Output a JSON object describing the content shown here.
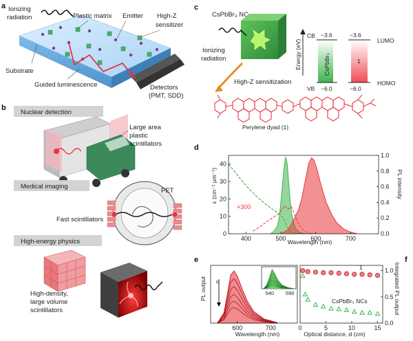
{
  "panel_a": {
    "letter": "a",
    "labels": {
      "ionizing": "Ionizing",
      "radiation": "radiation",
      "plastic_matrix": "Plastic matrix",
      "emitter": "Emitter",
      "high_z": "High-Z",
      "sensitizer": "sensitizer",
      "substrate": "Substrate",
      "guided": "Guided luminescence",
      "detectors": "Detectors",
      "detectors_sub": "(PMT, SDD)"
    }
  },
  "panel_b": {
    "letter": "b",
    "nuclear": "Nuclear detection",
    "large_area_1": "Large area",
    "large_area_2": "plastic",
    "large_area_3": "scintillators",
    "medical": "Medical imaging",
    "pet": "PET",
    "fast": "Fast scintillators",
    "hep": "High-energy physics",
    "hd1": "High-density,",
    "hd2": "large volume",
    "hd3": "scintillators"
  },
  "panel_c": {
    "letter": "c",
    "nc_title": "CsPbBr₃ NC",
    "ionizing": "Ionizing",
    "radiation": "radiation",
    "sensitization": "High-Z sensitization",
    "energy_axis": "Energy (eV)",
    "cb": "CB",
    "vb": "VB",
    "cb_val": "−3.6",
    "vb_val": "−6.0",
    "lumo_val": "−3.6",
    "homo_val": "−6.0",
    "lumo": "LUMO",
    "homo": "HOMO",
    "bar_label": "CsPbBr₃",
    "dyad_num": "1",
    "dyad_name": "Perylene dyad (1)",
    "colors": {
      "green": "#3cb54a",
      "red": "#e8363d",
      "molecule": "#e8363d"
    }
  },
  "panel_d": {
    "letter": "d",
    "xlabel": "Wavelength (nm)",
    "ylabel_left": "ε (cm⁻¹ μm⁻¹)",
    "ylabel_right": "PL intensity",
    "annotation": "×300",
    "xticks": [
      "400",
      "500",
      "600",
      "700"
    ],
    "yticks_left": [
      "0",
      "10",
      "20",
      "30",
      "40"
    ],
    "yticks_right": [
      "0.0",
      "0.2",
      "0.4",
      "0.6",
      "0.8",
      "1.0"
    ]
  },
  "panel_e": {
    "letter": "e",
    "ylabel": "PL output",
    "xlabel": "Wavelength (nm)",
    "d_label": "d",
    "xticks": [
      "600",
      "700"
    ],
    "inset_ticks": [
      "540",
      "590"
    ]
  },
  "panel_f": {
    "letter": "f",
    "xlabel": "Optical distance, d (cm)",
    "ylabel": "Integrated PL output",
    "series1_label": "1",
    "series2_label": "CsPbBr₃ NCs",
    "xticks": [
      "0",
      "5",
      "10",
      "15"
    ],
    "yticks": [
      "0.0",
      "0.5",
      "1.0"
    ]
  },
  "chart_data": [
    {
      "type": "line",
      "panel": "d",
      "xlabel": "Wavelength (nm)",
      "ylabel": "ε (cm⁻¹ μm⁻¹)",
      "xlim": [
        350,
        780
      ],
      "ylim_left": [
        0,
        45
      ],
      "ylim_right": [
        0,
        1.0
      ],
      "series": [
        {
          "axis": "left",
          "style": "dashed",
          "color": "#3a9a3a",
          "x": [
            350,
            370,
            390,
            410,
            430,
            450,
            470,
            490,
            500,
            510,
            515,
            520,
            530,
            540,
            560
          ],
          "y": [
            40,
            35,
            30,
            25.5,
            21.5,
            18,
            15,
            12,
            10.5,
            8,
            5.5,
            3,
            1,
            0.3,
            0
          ]
        },
        {
          "axis": "right",
          "style": "filled",
          "color": "#3cb54a",
          "x": [
            470,
            480,
            490,
            495,
            500,
            505,
            510,
            514,
            518,
            522,
            526,
            530,
            536,
            545,
            555,
            570
          ],
          "y": [
            0,
            0.03,
            0.1,
            0.2,
            0.4,
            0.65,
            0.88,
            0.98,
            0.9,
            0.68,
            0.45,
            0.28,
            0.14,
            0.05,
            0.015,
            0
          ]
        },
        {
          "axis": "left",
          "style": "dashed",
          "color": "#e8363d",
          "scale_note": "×300",
          "x": [
            420,
            440,
            460,
            475,
            490,
            500,
            510,
            520,
            530,
            540,
            550,
            560,
            570,
            580,
            600
          ],
          "y": [
            1.5,
            4,
            7,
            9,
            11,
            13,
            16,
            14,
            15.5,
            11,
            6,
            3,
            1.2,
            0.4,
            0
          ]
        },
        {
          "axis": "right",
          "style": "filled",
          "color": "#e8363d",
          "x": [
            500,
            520,
            535,
            550,
            560,
            570,
            580,
            588,
            595,
            605,
            615,
            630,
            645,
            660,
            680,
            700,
            720
          ],
          "y": [
            0,
            0.05,
            0.16,
            0.3,
            0.45,
            0.68,
            0.9,
            0.97,
            0.94,
            0.8,
            0.62,
            0.4,
            0.25,
            0.14,
            0.06,
            0.02,
            0
          ]
        }
      ]
    },
    {
      "type": "area",
      "panel": "e",
      "xlabel": "Wavelength (nm)",
      "ylabel": "PL output",
      "xlim": [
        520,
        780
      ],
      "series": [
        {
          "name": "",
          "x": [
            540,
            560,
            570,
            580,
            590,
            600,
            615,
            630,
            650,
            680,
            720
          ],
          "y": [
            0,
            0.2,
            0.55,
            0.92,
            1.0,
            0.9,
            0.65,
            0.42,
            0.22,
            0.08,
            0.01
          ]
        }
      ]
    },
    {
      "type": "scatter",
      "panel": "f",
      "xlabel": "Optical distance, d (cm)",
      "ylabel": "Integrated PL output",
      "xlim": [
        0,
        16
      ],
      "ylim": [
        0,
        1.1
      ],
      "series": [
        {
          "name": "1",
          "color": "#e8363d",
          "marker": "circle",
          "x": [
            0.5,
            1.5,
            3,
            4.5,
            6,
            7.5,
            9,
            10.5,
            12,
            13.5,
            15
          ],
          "y": [
            1.0,
            0.98,
            0.97,
            0.96,
            0.96,
            0.95,
            0.94,
            0.93,
            0.93,
            0.92,
            0.91
          ]
        },
        {
          "name": "CsPbBr₃ NCs",
          "color": "#3cb54a",
          "marker": "triangle",
          "x": [
            0.5,
            1,
            1.5,
            3,
            4.5,
            6,
            7.5,
            9,
            10.5,
            12,
            13.5,
            15
          ],
          "y": [
            0.9,
            0.55,
            0.45,
            0.35,
            0.32,
            0.28,
            0.27,
            0.25,
            0.22,
            0.2,
            0.2,
            0.18
          ]
        }
      ]
    }
  ]
}
